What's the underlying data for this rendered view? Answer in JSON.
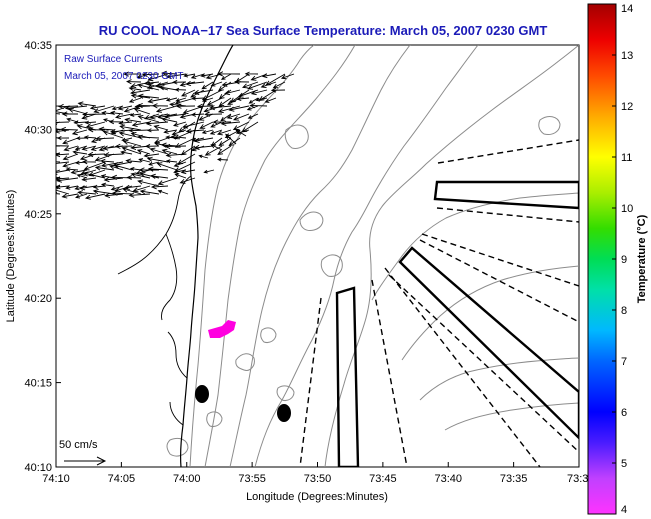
{
  "chart_data": {
    "type": "map",
    "title": "RU COOL  NOAA−17  Sea Surface Temperature:  March 05, 2007 0230 GMT",
    "xlabel": "Longitude (Degrees:Minutes)",
    "ylabel": "Latitude (Degrees:Minutes)",
    "x_ticks": [
      "74:10",
      "74:05",
      "74:00",
      "73:55",
      "73:50",
      "73:45",
      "73:40",
      "73:35",
      "73:3"
    ],
    "y_ticks": [
      "40:35",
      "40:30",
      "40:25",
      "40:20",
      "40:15",
      "40:10"
    ],
    "xlim_minutes_west": [
      610,
      570
    ],
    "ylim_minutes_north": [
      2410,
      2435
    ],
    "inset_lines": [
      "Raw Surface Currents",
      "March 05, 2007 0230 GMT"
    ],
    "scale_label": "50 cm/s",
    "colorbar": {
      "label": "Temperature (°C)",
      "range": [
        4,
        14
      ],
      "ticks": [
        "4",
        "5",
        "6",
        "7",
        "8",
        "9",
        "10",
        "11",
        "12",
        "13",
        "14"
      ]
    },
    "sst_patches": [
      {
        "name": "warm-color patch",
        "temp_c": 4.2
      }
    ]
  },
  "colors": {
    "title": "#1b1bb8",
    "coastline": "#000000",
    "bathymetry": "#8c8c8c",
    "patch": "#ff00e0"
  }
}
